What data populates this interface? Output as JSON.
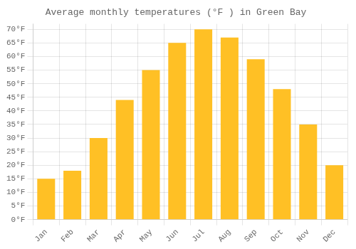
{
  "chart_data": {
    "type": "bar",
    "title": "Average monthly temperatures (°F ) in Green Bay",
    "categories": [
      "Jan",
      "Feb",
      "Mar",
      "Apr",
      "May",
      "Jun",
      "Jul",
      "Aug",
      "Sep",
      "Oct",
      "Nov",
      "Dec"
    ],
    "values": [
      15,
      18,
      30,
      44,
      55,
      65,
      70,
      67,
      59,
      48,
      35,
      20
    ],
    "color": "#FFC025",
    "ylim": [
      0,
      72
    ],
    "yticks": [
      {
        "value": 0,
        "label": "0°F"
      },
      {
        "value": 5,
        "label": "5°F"
      },
      {
        "value": 10,
        "label": "10°F"
      },
      {
        "value": 15,
        "label": "15°F"
      },
      {
        "value": 20,
        "label": "20°F"
      },
      {
        "value": 25,
        "label": "25°F"
      },
      {
        "value": 30,
        "label": "30°F"
      },
      {
        "value": 35,
        "label": "35°F"
      },
      {
        "value": 40,
        "label": "40°F"
      },
      {
        "value": 45,
        "label": "45°F"
      },
      {
        "value": 50,
        "label": "50°F"
      },
      {
        "value": 55,
        "label": "55°F"
      },
      {
        "value": 60,
        "label": "60°F"
      },
      {
        "value": 65,
        "label": "65°F"
      },
      {
        "value": 70,
        "label": "70°F"
      }
    ],
    "grid": true
  }
}
